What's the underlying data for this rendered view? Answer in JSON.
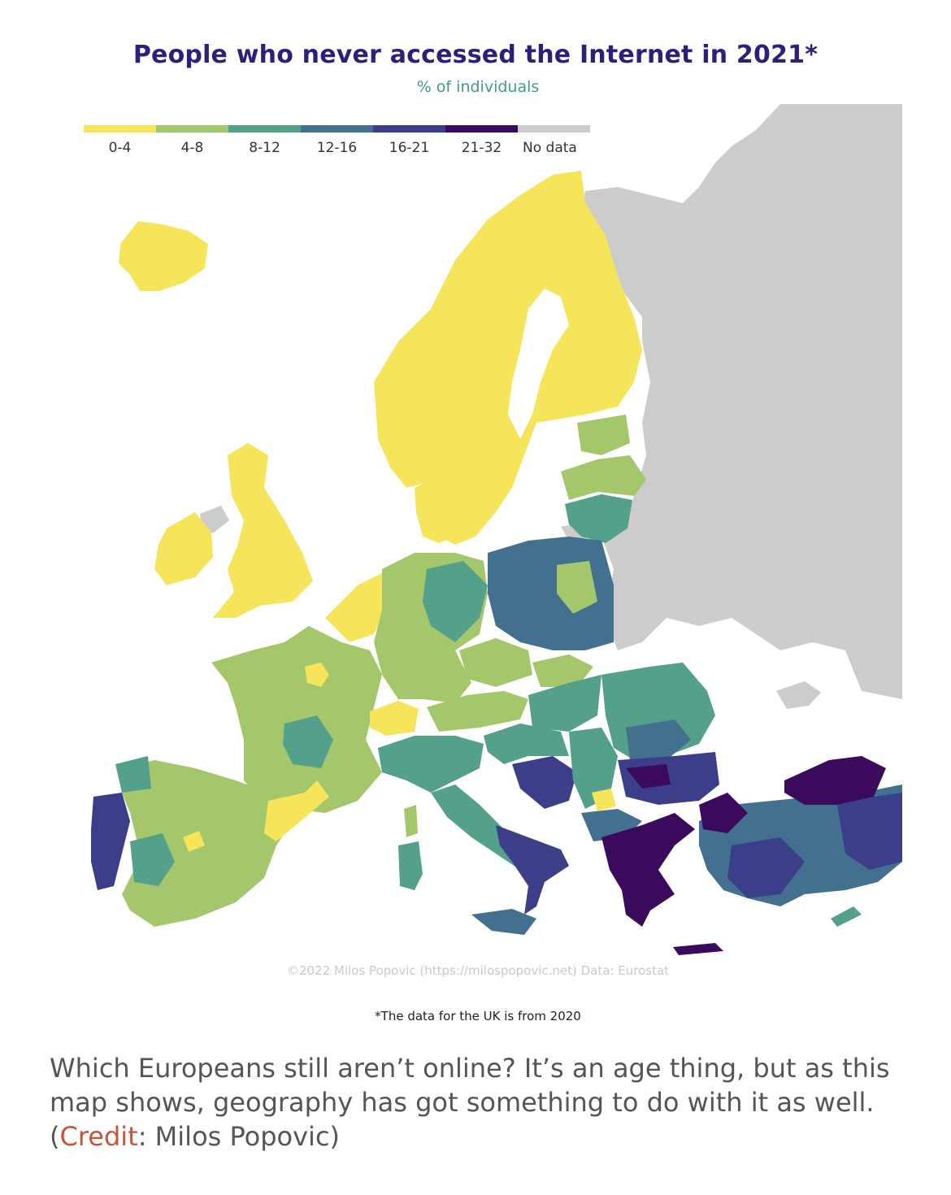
{
  "map": {
    "title": "People who never accessed the Internet in 2021*",
    "subtitle": "% of individuals",
    "legend": [
      {
        "label": "0-4",
        "color": "#f6e55a"
      },
      {
        "label": "4-8",
        "color": "#a3c76a"
      },
      {
        "label": "8-12",
        "color": "#54a08a"
      },
      {
        "label": "12-16",
        "color": "#44708f"
      },
      {
        "label": "16-21",
        "color": "#3c3e8a"
      },
      {
        "label": "21-32",
        "color": "#3a0a5c"
      },
      {
        "label": "No data",
        "color": "#cccccc"
      }
    ],
    "credit": "©2022 Milos Popovic (https://milospopovic.net) Data: Eurostat",
    "footnote": "*The data for the UK is from 2020"
  },
  "caption": {
    "text": "Which Europeans still aren’t online? It’s an age thing, but as this map shows, geography has got something to do with it as well.",
    "open_paren": "(",
    "link_label": "Credit",
    "rest": ": Milos Popovic)"
  }
}
